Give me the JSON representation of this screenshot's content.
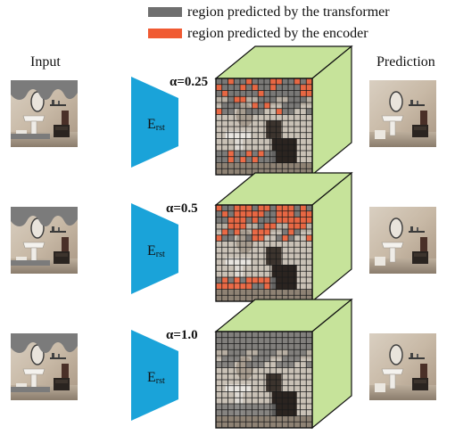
{
  "legend": {
    "items": [
      {
        "label": "region predicted by the transformer",
        "color": "#6f6f6f"
      },
      {
        "label": "region predicted by the encoder",
        "color": "#f05a32"
      }
    ]
  },
  "columns": {
    "input": "Input",
    "prediction": "Prediction"
  },
  "encoder": {
    "label_main": "E",
    "label_sub": "rst",
    "color": "#1aa3d9"
  },
  "cube": {
    "face_color": "#c6e39a",
    "grid_size": 16
  },
  "rows": [
    {
      "alpha_label": "α=0.25",
      "encoder_fraction": 0.25
    },
    {
      "alpha_label": "α=0.5",
      "encoder_fraction": 0.5
    },
    {
      "alpha_label": "α=1.0",
      "encoder_fraction": 1.0
    }
  ]
}
